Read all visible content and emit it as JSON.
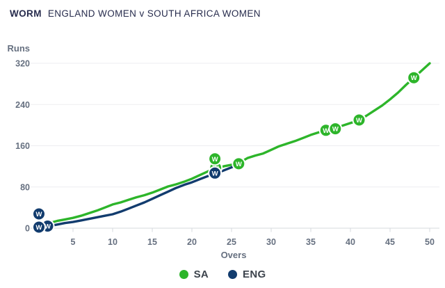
{
  "header": {
    "tag": "WORM",
    "title": "ENGLAND WOMEN v SOUTH AFRICA WOMEN"
  },
  "legend": {
    "items": [
      {
        "label": "SA",
        "color": "#2db52a"
      },
      {
        "label": "ENG",
        "color": "#123c6e"
      }
    ]
  },
  "colors": {
    "sa_green": "#2db52a",
    "eng_navy": "#123c6e",
    "grid": "#ededf0",
    "axis": "#d6d9de",
    "tick_text": "#667080",
    "title_text": "#272c4d"
  },
  "chart_data": {
    "type": "line",
    "title": "WORM — ENGLAND WOMEN v SOUTH AFRICA WOMEN",
    "xlabel": "Overs",
    "ylabel": "Runs",
    "xlim": [
      0,
      50
    ],
    "ylim": [
      0,
      320
    ],
    "xticks": [
      5,
      10,
      15,
      20,
      25,
      30,
      35,
      40,
      45,
      50
    ],
    "yticks": [
      0,
      80,
      160,
      240,
      320
    ],
    "grid": true,
    "legend_position": "bottom-center",
    "wicket_label": "W",
    "series": [
      {
        "name": "SA",
        "color": "#2db52a",
        "points": [
          [
            0,
            0
          ],
          [
            1,
            5
          ],
          [
            2,
            10
          ],
          [
            3,
            14
          ],
          [
            4,
            17
          ],
          [
            5,
            20
          ],
          [
            6,
            24
          ],
          [
            7,
            29
          ],
          [
            8,
            34
          ],
          [
            9,
            40
          ],
          [
            10,
            46
          ],
          [
            11,
            50
          ],
          [
            12,
            55
          ],
          [
            13,
            60
          ],
          [
            14,
            64
          ],
          [
            15,
            69
          ],
          [
            16,
            75
          ],
          [
            17,
            81
          ],
          [
            18,
            85
          ],
          [
            19,
            90
          ],
          [
            20,
            96
          ],
          [
            21,
            103
          ],
          [
            22,
            110
          ],
          [
            23,
            116
          ],
          [
            24,
            120
          ],
          [
            25,
            123
          ],
          [
            26,
            127
          ],
          [
            27,
            136
          ],
          [
            28,
            141
          ],
          [
            29,
            145
          ],
          [
            30,
            152
          ],
          [
            31,
            159
          ],
          [
            32,
            164
          ],
          [
            33,
            169
          ],
          [
            34,
            175
          ],
          [
            35,
            181
          ],
          [
            36,
            186
          ],
          [
            37,
            190
          ],
          [
            38,
            193
          ],
          [
            39,
            199
          ],
          [
            40,
            204
          ],
          [
            41,
            209
          ],
          [
            42,
            218
          ],
          [
            43,
            228
          ],
          [
            44,
            238
          ],
          [
            45,
            250
          ],
          [
            46,
            263
          ],
          [
            47,
            278
          ],
          [
            48,
            292
          ],
          [
            49,
            306
          ],
          [
            50,
            320
          ]
        ]
      },
      {
        "name": "ENG",
        "color": "#123c6e",
        "points": [
          [
            0,
            0
          ],
          [
            1,
            1
          ],
          [
            2,
            4
          ],
          [
            3,
            7
          ],
          [
            4,
            10
          ],
          [
            5,
            12
          ],
          [
            6,
            15
          ],
          [
            7,
            18
          ],
          [
            8,
            21
          ],
          [
            9,
            24
          ],
          [
            10,
            27
          ],
          [
            11,
            32
          ],
          [
            12,
            38
          ],
          [
            13,
            44
          ],
          [
            14,
            50
          ],
          [
            15,
            57
          ],
          [
            16,
            64
          ],
          [
            17,
            71
          ],
          [
            18,
            78
          ],
          [
            19,
            84
          ],
          [
            20,
            89
          ],
          [
            21,
            95
          ],
          [
            22,
            101
          ],
          [
            23,
            107
          ],
          [
            24,
            112
          ],
          [
            25,
            118
          ],
          [
            25.5,
            121
          ]
        ]
      }
    ],
    "wickets": [
      {
        "team": "SA",
        "over": 23.0,
        "runs": 117,
        "dy": 0
      },
      {
        "team": "ENG",
        "over": 0.7,
        "runs": 2,
        "dy": -19
      },
      {
        "team": "ENG",
        "over": 1.8,
        "runs": 4,
        "dy": 0
      },
      {
        "team": "ENG",
        "over": 0.7,
        "runs": 2,
        "dy": 0
      },
      {
        "team": "ENG",
        "over": 22.9,
        "runs": 107,
        "dy": 0
      },
      {
        "team": "SA",
        "over": 22.9,
        "runs": 117,
        "dy": -13
      },
      {
        "team": "SA",
        "over": 25.9,
        "runs": 125,
        "dy": 0
      },
      {
        "team": "SA",
        "over": 36.9,
        "runs": 190,
        "dy": 0
      },
      {
        "team": "SA",
        "over": 38.1,
        "runs": 193,
        "dy": 0
      },
      {
        "team": "SA",
        "over": 41.1,
        "runs": 210,
        "dy": 0
      },
      {
        "team": "SA",
        "over": 48.0,
        "runs": 292,
        "dy": 0
      }
    ]
  }
}
